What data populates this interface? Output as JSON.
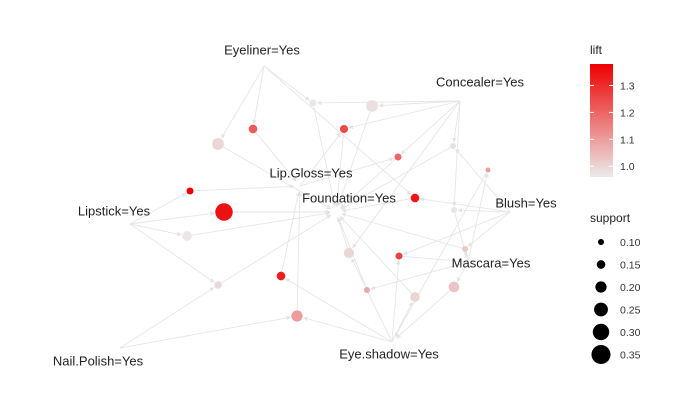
{
  "graph": {
    "items": [
      {
        "id": "eyeliner",
        "label": "Eyeliner=Yes"
      },
      {
        "id": "concealer",
        "label": "Concealer=Yes"
      },
      {
        "id": "lipgloss",
        "label": "Lip.Gloss=Yes"
      },
      {
        "id": "foundation",
        "label": "Foundation=Yes"
      },
      {
        "id": "lipstick",
        "label": "Lipstick=Yes"
      },
      {
        "id": "blush",
        "label": "Blush=Yes"
      },
      {
        "id": "mascara",
        "label": "Mascara=Yes"
      },
      {
        "id": "nailpolish",
        "label": "Nail.Polish=Yes"
      },
      {
        "id": "eyeshadow",
        "label": "Eye.shadow=Yes"
      }
    ],
    "rules": [
      {
        "id": "r1",
        "support": 0.12,
        "lift": 0.97,
        "from": [
          "eyeliner",
          "concealer"
        ],
        "to": "foundation"
      },
      {
        "id": "r2",
        "support": 0.21,
        "lift": 0.98,
        "from": [
          "concealer"
        ],
        "to": "foundation"
      },
      {
        "id": "r3",
        "support": 0.15,
        "lift": 1.22,
        "from": [
          "eyeliner"
        ],
        "to": "lipgloss"
      },
      {
        "id": "r4",
        "support": 0.14,
        "lift": 1.25,
        "from": [
          "concealer",
          "lipgloss"
        ],
        "to": "foundation"
      },
      {
        "id": "r5",
        "support": 0.21,
        "lift": 1.0,
        "from": [
          "eyeliner"
        ],
        "to": "foundation"
      },
      {
        "id": "r6",
        "support": 0.12,
        "lift": 1.2,
        "from": [
          "concealer",
          "lipgloss"
        ],
        "to": "foundation"
      },
      {
        "id": "r7",
        "support": 0.1,
        "lift": 0.98,
        "from": [
          "concealer",
          "blush"
        ],
        "to": "foundation"
      },
      {
        "id": "r8",
        "support": 0.12,
        "lift": 1.38,
        "from": [
          "lipstick"
        ],
        "to": "lipgloss"
      },
      {
        "id": "r9",
        "support": 0.32,
        "lift": 1.35,
        "from": [
          "lipstick"
        ],
        "to": "foundation"
      },
      {
        "id": "r10",
        "support": 0.15,
        "lift": 1.34,
        "from": [
          "blush",
          "eyeliner"
        ],
        "to": "foundation"
      },
      {
        "id": "r11",
        "support": 0.1,
        "lift": 0.97,
        "from": [
          "blush",
          "concealer"
        ],
        "to": "mascara"
      },
      {
        "id": "r12",
        "support": 0.17,
        "lift": 0.97,
        "from": [
          "lipstick"
        ],
        "to": "foundation"
      },
      {
        "id": "r13",
        "support": 0.18,
        "lift": 1.0,
        "from": [
          "eyeshadow",
          "concealer"
        ],
        "to": "foundation"
      },
      {
        "id": "r14",
        "support": 0.12,
        "lift": 1.26,
        "from": [
          "eyeshadow",
          "blush"
        ],
        "to": "mascara"
      },
      {
        "id": "r15",
        "support": 0.1,
        "lift": 1.02,
        "from": [
          "mascara",
          "blush"
        ],
        "to": "foundation"
      },
      {
        "id": "r16",
        "support": 0.15,
        "lift": 1.33,
        "from": [
          "eyeshadow"
        ],
        "to": "lipgloss"
      },
      {
        "id": "r17",
        "support": 0.13,
        "lift": 0.99,
        "from": [
          "nailpolish",
          "lipstick"
        ],
        "to": "foundation"
      },
      {
        "id": "r18",
        "support": 0.1,
        "lift": 1.08,
        "from": [
          "mascara"
        ],
        "to": "foundation"
      },
      {
        "id": "r19",
        "support": 0.17,
        "lift": 1.0,
        "from": [
          "eyeshadow"
        ],
        "to": "foundation"
      },
      {
        "id": "r20",
        "support": 0.19,
        "lift": 1.03,
        "from": [
          "mascara"
        ],
        "to": "eyeshadow"
      },
      {
        "id": "r21",
        "support": 0.2,
        "lift": 1.1,
        "from": [
          "nailpolish",
          "eyeshadow"
        ],
        "to": "lipgloss"
      },
      {
        "id": "r22",
        "support": 0.08,
        "lift": 1.1,
        "from": [
          "mascara"
        ],
        "to": "eyeshadow"
      }
    ]
  },
  "legend": {
    "lift": {
      "title": "lift",
      "range": [
        0.96,
        1.38
      ],
      "ticks": [
        "1.3",
        "1.2",
        "1.1",
        "1.0"
      ],
      "tick_values": [
        1.3,
        1.2,
        1.1,
        1.0
      ],
      "color_low": "#ebebeb",
      "color_high": "#ee0000"
    },
    "support": {
      "title": "support",
      "ticks": [
        "0.10",
        "0.15",
        "0.20",
        "0.25",
        "0.30",
        "0.35"
      ],
      "tick_values": [
        0.1,
        0.15,
        0.2,
        0.25,
        0.3,
        0.35
      ],
      "color": "#000000"
    }
  },
  "colors": {
    "edge": "#e6e6e6",
    "label": "#222222"
  }
}
